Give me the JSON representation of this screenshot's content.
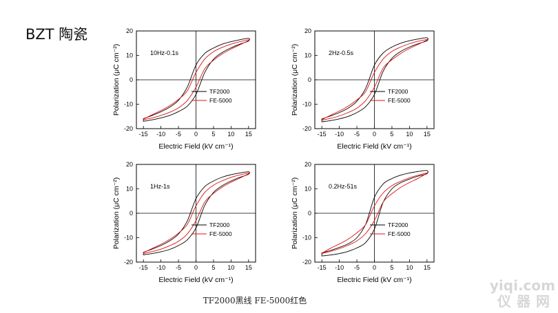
{
  "slide": {
    "title": "BZT 陶瓷",
    "caption": "TF2000黑线   FE-5000红色"
  },
  "watermark": {
    "line1": "yiqi.com",
    "line2": "仪器网"
  },
  "colors": {
    "tf2000": "#000000",
    "fe5000": "#e01010"
  },
  "chart_data": [
    {
      "type": "line",
      "annotation": "10Hz-0.1s",
      "xlabel": "Electric Field (kV cm⁻¹)",
      "ylabel": "Polarization (μC cm⁻²)",
      "xlim": [
        -17,
        17
      ],
      "ylim": [
        -20,
        20
      ],
      "xticks": [
        -15,
        -10,
        -5,
        0,
        5,
        10,
        15
      ],
      "yticks": [
        -20,
        -10,
        0,
        10,
        20
      ],
      "legend_position": "center-right",
      "x": [
        -15,
        -12.5,
        -10,
        -7.5,
        -5,
        -2.5,
        0,
        2.5,
        5,
        7.5,
        10,
        12.5,
        15
      ],
      "series": [
        {
          "name": "TF2000",
          "color": "#000000",
          "upper": [
            -15.9,
            -14.6,
            -13.1,
            -11.2,
            -8.4,
            -3.0,
            6.0,
            10.8,
            13.0,
            14.6,
            15.6,
            16.4,
            17.0
          ],
          "lower": [
            -17.0,
            -16.4,
            -15.6,
            -14.6,
            -13.0,
            -10.8,
            -6.0,
            3.0,
            8.4,
            11.2,
            13.1,
            14.6,
            15.9
          ]
        },
        {
          "name": "FE-5000",
          "color": "#e01010",
          "upper": [
            -16.1,
            -14.3,
            -12.6,
            -10.6,
            -8.0,
            -4.5,
            3.0,
            8.5,
            11.5,
            13.3,
            14.6,
            15.6,
            16.4
          ],
          "lower": [
            -16.4,
            -15.6,
            -14.6,
            -13.3,
            -11.5,
            -8.5,
            -3.0,
            4.5,
            8.0,
            10.6,
            12.6,
            14.3,
            16.1
          ]
        }
      ]
    },
    {
      "type": "line",
      "annotation": "2Hz-0.5s",
      "xlabel": "Electric Field (kV cm⁻¹)",
      "ylabel": "Polarization (μC cm⁻²)",
      "xlim": [
        -17,
        17
      ],
      "ylim": [
        -20,
        20
      ],
      "xticks": [
        -15,
        -10,
        -5,
        0,
        5,
        10,
        15
      ],
      "yticks": [
        -20,
        -10,
        0,
        10,
        20
      ],
      "legend_position": "center-right",
      "x": [
        -15,
        -12.5,
        -10,
        -7.5,
        -5,
        -2.5,
        0,
        2.5,
        5,
        7.5,
        10,
        12.5,
        15
      ],
      "series": [
        {
          "name": "TF2000",
          "color": "#000000",
          "upper": [
            -16.0,
            -14.8,
            -13.4,
            -11.6,
            -8.8,
            -3.5,
            6.0,
            11.0,
            13.4,
            15.0,
            16.0,
            16.7,
            17.2
          ],
          "lower": [
            -17.2,
            -16.7,
            -16.0,
            -15.0,
            -13.4,
            -11.0,
            -6.0,
            3.5,
            8.8,
            11.6,
            13.4,
            14.8,
            16.0
          ]
        },
        {
          "name": "FE-5000",
          "color": "#e01010",
          "upper": [
            -16.3,
            -14.5,
            -12.8,
            -10.8,
            -8.2,
            -4.8,
            3.0,
            8.5,
            11.6,
            13.4,
            14.8,
            15.8,
            16.5
          ],
          "lower": [
            -16.5,
            -15.8,
            -14.8,
            -13.4,
            -11.6,
            -8.5,
            -3.0,
            4.8,
            8.2,
            10.8,
            12.8,
            14.5,
            16.3
          ]
        }
      ]
    },
    {
      "type": "line",
      "annotation": "1Hz-1s",
      "xlabel": "Electric Field (kV cm⁻¹)",
      "ylabel": "Polarization (μC cm⁻²)",
      "xlim": [
        -17,
        17
      ],
      "ylim": [
        -20,
        20
      ],
      "xticks": [
        -15,
        -10,
        -5,
        0,
        5,
        10,
        15
      ],
      "yticks": [
        -20,
        -10,
        0,
        10,
        20
      ],
      "legend_position": "center-right",
      "x": [
        -15,
        -12.5,
        -10,
        -7.5,
        -5,
        -2.5,
        0,
        2.5,
        5,
        7.5,
        10,
        12.5,
        15
      ],
      "series": [
        {
          "name": "TF2000",
          "color": "#000000",
          "upper": [
            -16.0,
            -14.7,
            -13.2,
            -11.3,
            -8.5,
            -3.2,
            6.0,
            10.9,
            13.2,
            14.8,
            15.8,
            16.5,
            17.0
          ],
          "lower": [
            -17.0,
            -16.5,
            -15.8,
            -14.8,
            -13.2,
            -10.9,
            -6.0,
            3.2,
            8.5,
            11.3,
            13.2,
            14.7,
            16.0
          ]
        },
        {
          "name": "FE-5000",
          "color": "#e01010",
          "upper": [
            -16.2,
            -14.4,
            -12.7,
            -10.7,
            -8.1,
            -4.6,
            3.0,
            8.5,
            11.5,
            13.3,
            14.7,
            15.7,
            16.5
          ],
          "lower": [
            -16.5,
            -15.7,
            -14.7,
            -13.3,
            -11.5,
            -8.5,
            -3.0,
            4.6,
            8.1,
            10.7,
            12.7,
            14.4,
            16.2
          ]
        }
      ]
    },
    {
      "type": "line",
      "annotation": "0.2Hz-51s",
      "xlabel": "Electric Field (kV cm⁻¹)",
      "ylabel": "Polarization (μC cm⁻²)",
      "xlim": [
        -17,
        17
      ],
      "ylim": [
        -20,
        20
      ],
      "xticks": [
        -15,
        -10,
        -5,
        0,
        5,
        10,
        15
      ],
      "yticks": [
        -20,
        -10,
        0,
        10,
        20
      ],
      "legend_position": "center-right",
      "x": [
        -15,
        -12.5,
        -10,
        -7.5,
        -5,
        -2.5,
        0,
        2.5,
        5,
        7.5,
        10,
        12.5,
        15
      ],
      "series": [
        {
          "name": "TF2000",
          "color": "#000000",
          "upper": [
            -16.2,
            -15.2,
            -14.0,
            -12.5,
            -10.0,
            -4.5,
            6.5,
            12.0,
            14.2,
            15.6,
            16.5,
            17.1,
            17.5
          ],
          "lower": [
            -17.5,
            -17.1,
            -16.5,
            -15.6,
            -14.2,
            -12.0,
            -6.5,
            4.5,
            10.0,
            12.5,
            14.0,
            15.2,
            16.2
          ]
        },
        {
          "name": "FE-5000",
          "color": "#e01010",
          "upper": [
            -16.4,
            -14.3,
            -12.6,
            -10.6,
            -8.0,
            -4.6,
            3.0,
            8.3,
            11.3,
            13.1,
            14.5,
            15.6,
            16.5
          ],
          "lower": [
            -16.5,
            -15.6,
            -14.5,
            -13.1,
            -11.3,
            -8.3,
            -3.0,
            4.6,
            8.0,
            10.6,
            12.6,
            14.3,
            16.4
          ]
        }
      ]
    }
  ]
}
